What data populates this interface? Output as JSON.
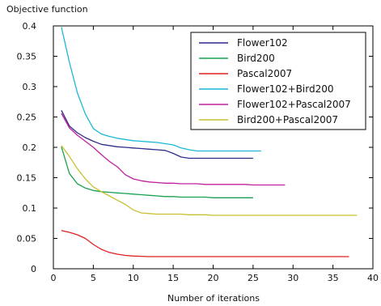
{
  "chart_data": {
    "type": "line",
    "title": "",
    "xlabel": "Number of iterations",
    "ylabel": "Objective function",
    "xlim": [
      0,
      40
    ],
    "ylim": [
      0,
      0.4
    ],
    "xticks": [
      0,
      5,
      10,
      15,
      20,
      25,
      30,
      35,
      40
    ],
    "xtick_labels": [
      "0",
      "5",
      "10",
      "15",
      "20",
      "25",
      "30",
      "35",
      "40"
    ],
    "yticks": [
      0,
      0.05,
      0.1,
      0.15,
      0.2,
      0.25,
      0.3,
      0.35,
      0.4
    ],
    "ytick_labels": [
      "0",
      "0.05",
      "0.1",
      "0.15",
      "0.2",
      "0.25",
      "0.3",
      "0.35",
      "0.4"
    ],
    "grid": false,
    "legend_position": "top-right",
    "series": [
      {
        "name": "Flower102",
        "color": "#2c2c8c",
        "x": [
          1,
          2,
          3,
          4,
          5,
          6,
          7,
          8,
          9,
          10,
          11,
          12,
          13,
          14,
          15,
          16,
          17,
          18,
          19,
          20,
          21,
          22,
          23,
          24,
          25
        ],
        "y": [
          0.261,
          0.235,
          0.224,
          0.216,
          0.21,
          0.205,
          0.203,
          0.201,
          0.2,
          0.199,
          0.198,
          0.197,
          0.196,
          0.195,
          0.19,
          0.184,
          0.182,
          0.182,
          0.182,
          0.182,
          0.182,
          0.182,
          0.182,
          0.182,
          0.182
        ]
      },
      {
        "name": "Bird200",
        "color": "#1aa050",
        "x": [
          1,
          2,
          3,
          4,
          5,
          6,
          7,
          8,
          9,
          10,
          11,
          12,
          13,
          14,
          15,
          16,
          17,
          18,
          19,
          20,
          21,
          22,
          23,
          24,
          25
        ],
        "y": [
          0.201,
          0.157,
          0.14,
          0.133,
          0.129,
          0.127,
          0.126,
          0.125,
          0.124,
          0.123,
          0.122,
          0.121,
          0.12,
          0.119,
          0.119,
          0.118,
          0.118,
          0.118,
          0.118,
          0.117,
          0.117,
          0.117,
          0.117,
          0.117,
          0.117
        ]
      },
      {
        "name": "Pascal2007",
        "color": "#e02020",
        "x": [
          1,
          2,
          3,
          4,
          5,
          6,
          7,
          8,
          9,
          10,
          11,
          12,
          13,
          14,
          15,
          16,
          17,
          18,
          19,
          20,
          21,
          22,
          23,
          24,
          25,
          26,
          27,
          28,
          29,
          30,
          31,
          32,
          33,
          34,
          35,
          36,
          37
        ],
        "y": [
          0.063,
          0.06,
          0.056,
          0.05,
          0.04,
          0.032,
          0.027,
          0.024,
          0.022,
          0.021,
          0.0205,
          0.02,
          0.02,
          0.02,
          0.02,
          0.02,
          0.02,
          0.02,
          0.02,
          0.02,
          0.02,
          0.02,
          0.02,
          0.02,
          0.02,
          0.02,
          0.02,
          0.02,
          0.02,
          0.02,
          0.02,
          0.02,
          0.02,
          0.02,
          0.02,
          0.02,
          0.02
        ]
      },
      {
        "name": "Flower102+Bird200",
        "color": "#1ab8d8",
        "x": [
          1,
          2,
          3,
          4,
          5,
          6,
          7,
          8,
          9,
          10,
          11,
          12,
          13,
          14,
          15,
          16,
          17,
          18,
          19,
          20,
          21,
          22,
          23,
          24,
          25,
          26
        ],
        "y": [
          0.398,
          0.34,
          0.29,
          0.255,
          0.231,
          0.222,
          0.218,
          0.215,
          0.213,
          0.211,
          0.21,
          0.209,
          0.208,
          0.206,
          0.204,
          0.199,
          0.196,
          0.194,
          0.194,
          0.194,
          0.194,
          0.194,
          0.194,
          0.194,
          0.194,
          0.194
        ]
      },
      {
        "name": "Flower102+Pascal2007",
        "color": "#c0209c",
        "x": [
          1,
          2,
          3,
          4,
          5,
          6,
          7,
          8,
          9,
          10,
          11,
          12,
          13,
          14,
          15,
          16,
          17,
          18,
          19,
          20,
          21,
          22,
          23,
          24,
          25,
          26,
          27,
          28,
          29
        ],
        "y": [
          0.256,
          0.232,
          0.22,
          0.21,
          0.2,
          0.188,
          0.177,
          0.168,
          0.155,
          0.148,
          0.145,
          0.143,
          0.142,
          0.141,
          0.141,
          0.14,
          0.14,
          0.14,
          0.139,
          0.139,
          0.139,
          0.139,
          0.139,
          0.139,
          0.138,
          0.138,
          0.138,
          0.138,
          0.138
        ]
      },
      {
        "name": "Bird200+Pascal2007",
        "color": "#c8c030",
        "x": [
          1,
          2,
          3,
          4,
          5,
          6,
          7,
          8,
          9,
          10,
          11,
          12,
          13,
          14,
          15,
          16,
          17,
          18,
          19,
          20,
          21,
          22,
          23,
          24,
          25,
          26,
          27,
          28,
          29,
          30,
          31,
          32,
          33,
          34,
          35,
          36,
          37,
          38
        ],
        "y": [
          0.203,
          0.185,
          0.165,
          0.148,
          0.135,
          0.127,
          0.12,
          0.113,
          0.106,
          0.097,
          0.092,
          0.091,
          0.09,
          0.09,
          0.09,
          0.09,
          0.089,
          0.089,
          0.089,
          0.088,
          0.088,
          0.088,
          0.088,
          0.088,
          0.088,
          0.088,
          0.088,
          0.088,
          0.088,
          0.088,
          0.088,
          0.088,
          0.088,
          0.088,
          0.088,
          0.088,
          0.088,
          0.088
        ]
      }
    ]
  }
}
